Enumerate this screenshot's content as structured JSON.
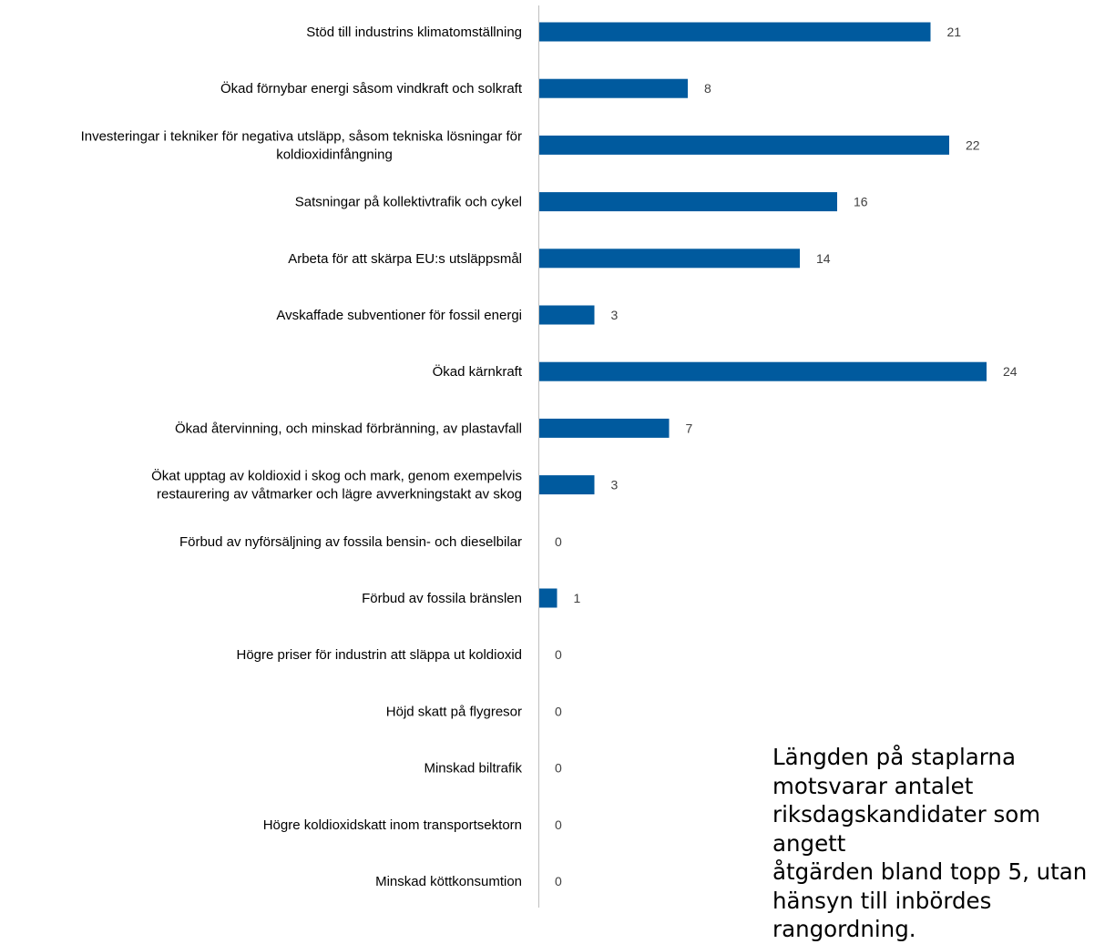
{
  "chart_data": {
    "type": "bar",
    "orientation": "horizontal",
    "categories": [
      [
        "Stöd till industrins klimatomställning"
      ],
      [
        "Ökad förnybar energi såsom vindkraft och solkraft"
      ],
      [
        "Investeringar i tekniker för negativa utsläpp, såsom tekniska lösningar för",
        "koldioxidinfångning"
      ],
      [
        "Satsningar på kollektivtrafik och cykel"
      ],
      [
        "Arbeta för att skärpa EU:s utsläppsmål"
      ],
      [
        "Avskaffade subventioner för fossil energi"
      ],
      [
        "Ökad kärnkraft"
      ],
      [
        "Ökad återvinning, och minskad förbränning, av plastavfall"
      ],
      [
        "Ökat upptag av koldioxid i skog och mark, genom exempelvis",
        "restaurering av våtmarker och lägre avverkningstakt av skog"
      ],
      [
        "Förbud av nyförsäljning av fossila bensin- och dieselbilar"
      ],
      [
        "Förbud av fossila bränslen"
      ],
      [
        "Högre priser för industrin att släppa ut koldioxid"
      ],
      [
        "Höjd skatt på flygresor"
      ],
      [
        "Minskad biltrafik"
      ],
      [
        "Högre koldioxidskatt inom transportsektorn"
      ],
      [
        "Minskad köttkonsumtion"
      ]
    ],
    "values": [
      21,
      8,
      22,
      16,
      14,
      3,
      24,
      7,
      3,
      0,
      1,
      0,
      0,
      0,
      0,
      0
    ],
    "data_labels": [
      "21",
      "8",
      "22",
      "16",
      "14",
      "3",
      "24",
      "7",
      "3",
      "0",
      "1",
      "0",
      "0",
      "0",
      "0",
      "0"
    ],
    "xlim": [
      0,
      24
    ],
    "grid": false,
    "legend": "none",
    "colors": {
      "bar": "#005A9E",
      "axis": "#BFBFBF",
      "category_text": "#000000",
      "value_text": "#404040"
    }
  },
  "note": {
    "lines": [
      "Längden på staplarna",
      "motsvarar antalet",
      "riksdagskandidater som angett",
      "åtgärden bland topp 5, utan",
      "hänsyn till inbördes",
      "rangordning."
    ]
  }
}
